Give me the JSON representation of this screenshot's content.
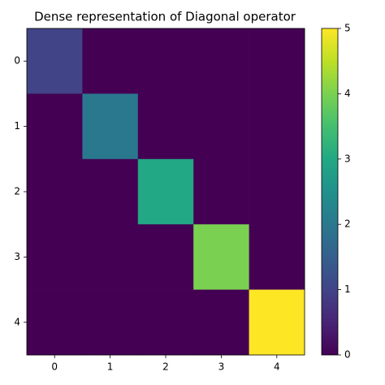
{
  "chart_data": {
    "type": "heatmap",
    "title": "Dense representation of Diagonal operator",
    "values": [
      [
        1,
        0,
        0,
        0,
        0
      ],
      [
        0,
        2,
        0,
        0,
        0
      ],
      [
        0,
        0,
        3,
        0,
        0
      ],
      [
        0,
        0,
        0,
        4,
        0
      ],
      [
        0,
        0,
        0,
        0,
        5
      ]
    ],
    "xlim": [
      -0.5,
      4.5
    ],
    "ylim": [
      4.5,
      -0.5
    ],
    "xticks": [
      0,
      1,
      2,
      3,
      4
    ],
    "yticks": [
      0,
      1,
      2,
      3,
      4
    ],
    "colormap": "viridis",
    "clim": [
      0,
      5
    ],
    "cticks": [
      0,
      1,
      2,
      3,
      4,
      5
    ]
  }
}
